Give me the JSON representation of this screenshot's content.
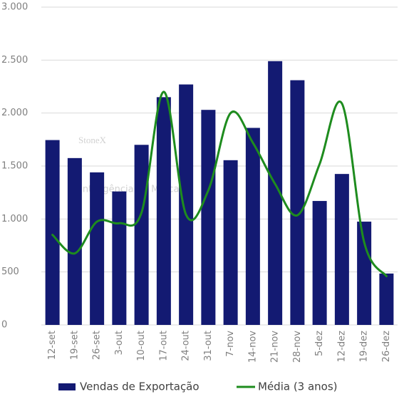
{
  "chart_data": {
    "type": "bar",
    "categories": [
      "12-set",
      "19-set",
      "26-set",
      "3-out",
      "10-out",
      "17-out",
      "24-out",
      "31-out",
      "7-nov",
      "14-nov",
      "21-nov",
      "28-nov",
      "5-dez",
      "12-dez",
      "19-dez",
      "26-dez"
    ],
    "series": [
      {
        "name": "Vendas de Exportação",
        "type": "bar",
        "color": "#131a72",
        "values": [
          1745,
          1575,
          1440,
          1260,
          1700,
          2150,
          2270,
          2030,
          1555,
          1860,
          2490,
          2310,
          1170,
          1425,
          975,
          485
        ]
      },
      {
        "name": "Média (3 anos)",
        "type": "line",
        "smooth": true,
        "color": "#1e8c1e",
        "values": [
          850,
          675,
          975,
          960,
          1060,
          2200,
          1040,
          1270,
          2000,
          1720,
          1330,
          1035,
          1520,
          2090,
          780,
          460
        ]
      }
    ],
    "ylim": [
      0,
      3000
    ],
    "yticks": [
      0,
      500,
      {
        "value": 1000,
        "label": "1.000"
      },
      {
        "value": 1500,
        "label": "1.500"
      },
      {
        "value": 2000,
        "label": "2.000"
      },
      {
        "value": 2500,
        "label": "2.500"
      },
      {
        "value": 3000,
        "label": "3.000"
      }
    ],
    "grid": true,
    "legend": "bottom",
    "watermark": [
      "StoneX",
      "Inteligência de Mercado"
    ]
  }
}
